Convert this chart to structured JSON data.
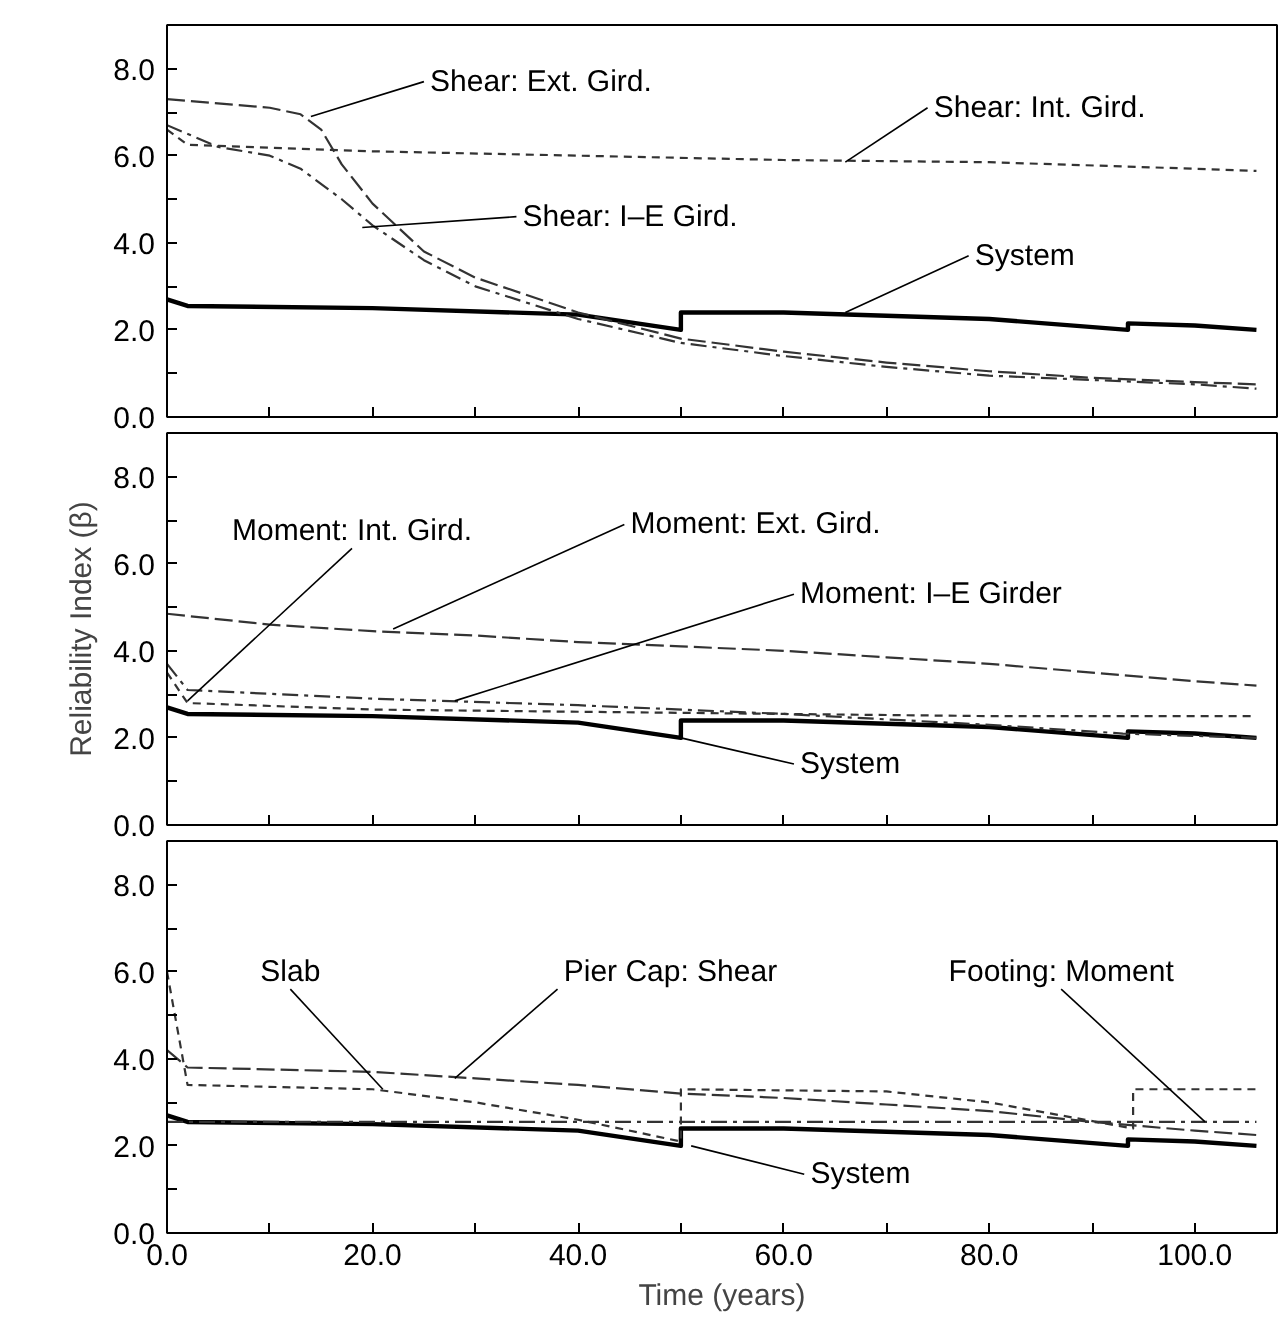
{
  "chart_data": [
    {
      "type": "line",
      "xlim": [
        0,
        108
      ],
      "ylim": [
        0,
        9
      ],
      "tick_labels": "y",
      "xticks": [
        {
          "value": 0,
          "label": null
        },
        {
          "value": 10,
          "label": null
        },
        {
          "value": 20,
          "label": null
        },
        {
          "value": 30,
          "label": null
        },
        {
          "value": 40,
          "label": null
        },
        {
          "value": 50,
          "label": null
        },
        {
          "value": 60,
          "label": null
        },
        {
          "value": 70,
          "label": null
        },
        {
          "value": 80,
          "label": null
        },
        {
          "value": 90,
          "label": null
        },
        {
          "value": 100,
          "label": null
        }
      ],
      "yticks": [
        {
          "value": 0,
          "label": "0.0"
        },
        {
          "value": 1,
          "label": null
        },
        {
          "value": 2,
          "label": "2.0"
        },
        {
          "value": 3,
          "label": null
        },
        {
          "value": 4,
          "label": "4.0"
        },
        {
          "value": 5,
          "label": null
        },
        {
          "value": 6,
          "label": "6.0"
        },
        {
          "value": 7,
          "label": null
        },
        {
          "value": 8,
          "label": "8.0"
        }
      ],
      "series": [
        {
          "color": "#000000",
          "line_style": "solid",
          "x": [
            0,
            2,
            20,
            40,
            50,
            50,
            60,
            80,
            93.5,
            93.5,
            100,
            106
          ],
          "values": [
            2.7,
            2.55,
            2.5,
            2.35,
            2.0,
            2.4,
            2.4,
            2.25,
            2.0,
            2.15,
            2.1,
            2.0
          ]
        },
        {
          "color": "#333333",
          "line_style": "dashed",
          "x": [
            0,
            10,
            13,
            15,
            17,
            20,
            25,
            30,
            40,
            50,
            60,
            70,
            80,
            90,
            100,
            106
          ],
          "values": [
            7.3,
            7.1,
            6.95,
            6.6,
            5.8,
            4.9,
            3.8,
            3.2,
            2.4,
            1.8,
            1.5,
            1.25,
            1.05,
            0.9,
            0.8,
            0.75
          ]
        },
        {
          "color": "#333333",
          "line_style": "dotted",
          "x": [
            0,
            2,
            20,
            40,
            60,
            80,
            100,
            106
          ],
          "values": [
            6.6,
            6.25,
            6.1,
            6.0,
            5.9,
            5.85,
            5.7,
            5.65
          ]
        },
        {
          "color": "#333333",
          "line_style": "dashdot",
          "x": [
            0,
            5,
            10,
            13,
            17,
            20,
            25,
            30,
            40,
            50,
            60,
            70,
            80,
            90,
            100,
            106
          ],
          "values": [
            6.7,
            6.2,
            6.0,
            5.7,
            5.0,
            4.4,
            3.6,
            3.0,
            2.25,
            1.7,
            1.4,
            1.15,
            0.95,
            0.85,
            0.75,
            0.65
          ]
        }
      ],
      "annotations": [
        {
          "text": "Shear: Ext. Gird.",
          "x": 14,
          "y": 6.9
        },
        {
          "text": "Shear: Int. Gird.",
          "x": 66,
          "y": 5.85
        },
        {
          "text": "Shear: I–E Gird.",
          "x": 19,
          "y": 4.35
        },
        {
          "text": "System",
          "x": 66,
          "y": 2.4
        }
      ]
    },
    {
      "type": "line",
      "xlim": [
        0,
        108
      ],
      "ylim": [
        0,
        9
      ],
      "tick_labels": "y",
      "ylabel": "Reliability Index (β)",
      "xticks": [
        {
          "value": 0,
          "label": null
        },
        {
          "value": 10,
          "label": null
        },
        {
          "value": 20,
          "label": null
        },
        {
          "value": 30,
          "label": null
        },
        {
          "value": 40,
          "label": null
        },
        {
          "value": 50,
          "label": null
        },
        {
          "value": 60,
          "label": null
        },
        {
          "value": 70,
          "label": null
        },
        {
          "value": 80,
          "label": null
        },
        {
          "value": 90,
          "label": null
        },
        {
          "value": 100,
          "label": null
        }
      ],
      "yticks": [
        {
          "value": 0,
          "label": "0.0"
        },
        {
          "value": 1,
          "label": null
        },
        {
          "value": 2,
          "label": "2.0"
        },
        {
          "value": 3,
          "label": null
        },
        {
          "value": 4,
          "label": "4.0"
        },
        {
          "value": 5,
          "label": null
        },
        {
          "value": 6,
          "label": "6.0"
        },
        {
          "value": 7,
          "label": null
        },
        {
          "value": 8,
          "label": "8.0"
        }
      ],
      "series": [
        {
          "color": "#000000",
          "line_style": "solid",
          "x": [
            0,
            2,
            20,
            40,
            50,
            50,
            60,
            80,
            93.5,
            93.5,
            100,
            106
          ],
          "values": [
            2.7,
            2.55,
            2.5,
            2.35,
            2.0,
            2.4,
            2.4,
            2.25,
            2.0,
            2.15,
            2.1,
            2.0
          ]
        },
        {
          "color": "#333333",
          "line_style": "dashed",
          "x": [
            0,
            10,
            20,
            30,
            40,
            50,
            60,
            70,
            80,
            90,
            100,
            106
          ],
          "values": [
            4.85,
            4.6,
            4.45,
            4.35,
            4.2,
            4.1,
            4.0,
            3.85,
            3.7,
            3.5,
            3.3,
            3.2
          ]
        },
        {
          "color": "#333333",
          "line_style": "dotted",
          "x": [
            0,
            2,
            20,
            40,
            60,
            80,
            106
          ],
          "values": [
            3.5,
            2.8,
            2.65,
            2.6,
            2.55,
            2.5,
            2.5
          ]
        },
        {
          "color": "#333333",
          "line_style": "dashdot",
          "x": [
            0,
            2,
            20,
            40,
            60,
            80,
            93,
            106
          ],
          "values": [
            3.7,
            3.1,
            2.9,
            2.75,
            2.55,
            2.3,
            2.1,
            2.0
          ]
        }
      ],
      "annotations": [
        {
          "text": "Moment: Int. Gird.",
          "x": 2,
          "y": 2.85
        },
        {
          "text": "Moment: Ext. Gird.",
          "x": 22,
          "y": 4.5
        },
        {
          "text": "Moment: I–E Girder",
          "x": 28,
          "y": 2.85
        },
        {
          "text": "System",
          "x": 50,
          "y": 2.0
        }
      ]
    },
    {
      "type": "line",
      "xlim": [
        0,
        108
      ],
      "ylim": [
        0,
        9
      ],
      "xlabel": "Time (years)",
      "xticks": [
        {
          "value": 0,
          "label": "0.0"
        },
        {
          "value": 10,
          "label": null
        },
        {
          "value": 20,
          "label": "20.0"
        },
        {
          "value": 30,
          "label": null
        },
        {
          "value": 40,
          "label": "40.0"
        },
        {
          "value": 50,
          "label": null
        },
        {
          "value": 60,
          "label": "60.0"
        },
        {
          "value": 70,
          "label": null
        },
        {
          "value": 80,
          "label": "80.0"
        },
        {
          "value": 90,
          "label": null
        },
        {
          "value": 100,
          "label": "100.0"
        }
      ],
      "yticks": [
        {
          "value": 0,
          "label": "0.0"
        },
        {
          "value": 1,
          "label": null
        },
        {
          "value": 2,
          "label": "2.0"
        },
        {
          "value": 3,
          "label": null
        },
        {
          "value": 4,
          "label": "4.0"
        },
        {
          "value": 5,
          "label": null
        },
        {
          "value": 6,
          "label": "6.0"
        },
        {
          "value": 7,
          "label": null
        },
        {
          "value": 8,
          "label": "8.0"
        }
      ],
      "series": [
        {
          "color": "#000000",
          "line_style": "solid",
          "x": [
            0,
            2,
            20,
            40,
            50,
            50,
            60,
            80,
            93.5,
            93.5,
            100,
            106
          ],
          "values": [
            2.7,
            2.55,
            2.5,
            2.35,
            2.0,
            2.4,
            2.4,
            2.25,
            2.0,
            2.15,
            2.1,
            2.0
          ]
        },
        {
          "color": "#333333",
          "line_style": "dotted",
          "x": [
            0,
            2,
            20,
            30,
            40,
            50,
            50,
            70,
            80,
            94,
            94,
            106
          ],
          "values": [
            6.0,
            3.4,
            3.3,
            3.0,
            2.6,
            2.1,
            3.3,
            3.25,
            3.0,
            2.4,
            3.3,
            3.3
          ]
        },
        {
          "color": "#333333",
          "line_style": "dashed",
          "x": [
            0,
            2,
            20,
            30,
            40,
            50,
            60,
            70,
            80,
            90,
            100,
            106
          ],
          "values": [
            4.2,
            3.8,
            3.7,
            3.55,
            3.4,
            3.2,
            3.1,
            2.95,
            2.8,
            2.55,
            2.35,
            2.25
          ]
        },
        {
          "color": "#333333",
          "line_style": "dashdot",
          "x": [
            0,
            106
          ],
          "values": [
            2.55,
            2.55
          ]
        }
      ],
      "annotations": [
        {
          "text": "Slab",
          "x": 21,
          "y": 3.3
        },
        {
          "text": "Pier Cap: Shear",
          "x": 28,
          "y": 3.55
        },
        {
          "text": "Footing: Moment",
          "x": 101,
          "y": 2.55
        },
        {
          "text": "System",
          "x": 51,
          "y": 2.0
        }
      ]
    }
  ]
}
